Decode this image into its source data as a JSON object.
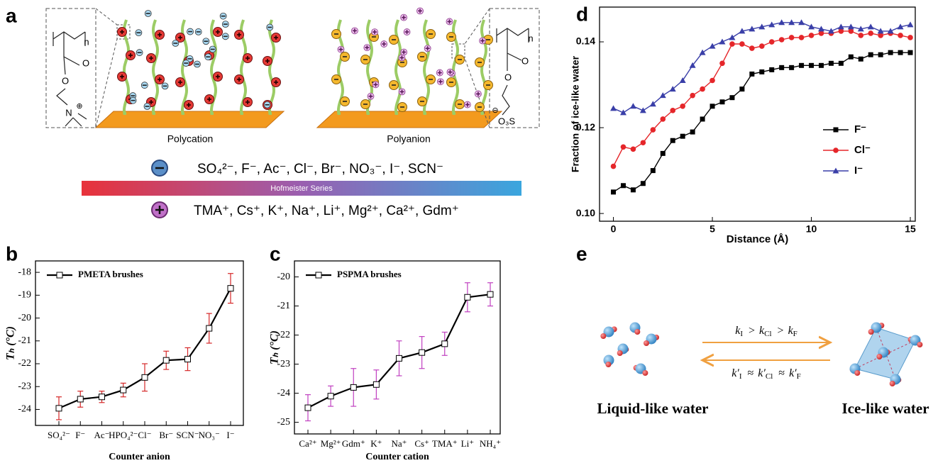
{
  "panel_labels": [
    "a",
    "b",
    "c",
    "d",
    "e"
  ],
  "schematic": {
    "polycation_label": "Polycation",
    "polyanion_label": "Polyanion",
    "cation_monomer": [
      "n",
      "O",
      "O",
      "N",
      "⊕"
    ],
    "anion_monomer": [
      "n",
      "O",
      "O",
      "⊖",
      "O₃S"
    ],
    "anion_series": "SO₄²⁻, F⁻, Ac⁻, Cl⁻, Br⁻, NO₃⁻, I⁻, SCN⁻",
    "scale_label": "Hofmeister Series",
    "cation_series": "TMA⁺, Cs⁺, K⁺, Na⁺, Li⁺, Mg²⁺, Ca²⁺, Gdm⁺"
  },
  "chart_data": [
    {
      "type": "line",
      "xlabel": "Counter anion",
      "ylabel": "Tₕ (°C)",
      "categories": [
        "SO₄²⁻",
        "F⁻",
        "Ac⁻",
        "HPO₄²⁻",
        "Cl⁻",
        "Br⁻",
        "SCN⁻",
        "NO₃⁻",
        "I⁻"
      ],
      "series": [
        {
          "name": "PMETA brushes",
          "color": "#000000",
          "marker": "open-square",
          "error_color": "#d62728",
          "values": [
            -23.95,
            -23.55,
            -23.45,
            -23.15,
            -22.6,
            -21.85,
            -21.8,
            -20.45,
            -18.7
          ],
          "errors": [
            0.5,
            0.35,
            0.25,
            0.3,
            0.6,
            0.4,
            0.5,
            0.65,
            0.65
          ]
        }
      ],
      "ylim": [
        -24.7,
        -17.5
      ],
      "yticks": [
        -24,
        -23,
        -22,
        -21,
        -20,
        -19,
        -18
      ],
      "legend": "upper left"
    },
    {
      "type": "line",
      "xlabel": "Counter cation",
      "ylabel": "Tₕ (°C)",
      "categories": [
        "Ca²⁺",
        "Mg²⁺",
        "Gdm⁺",
        "K⁺",
        "Na⁺",
        "Cs⁺",
        "TMA⁺",
        "Li⁺",
        "NH₄⁺"
      ],
      "series": [
        {
          "name": "PSPMA brushes",
          "color": "#000000",
          "marker": "open-square",
          "error_color": "#c040c0",
          "values": [
            -24.5,
            -24.1,
            -23.8,
            -23.7,
            -22.8,
            -22.6,
            -22.3,
            -20.7,
            -20.6
          ],
          "errors": [
            0.45,
            0.35,
            0.65,
            0.5,
            0.6,
            0.55,
            0.4,
            0.5,
            0.4
          ]
        }
      ],
      "ylim": [
        -25.4,
        -19.45
      ],
      "yticks": [
        -25,
        -24,
        -23,
        -22,
        -21,
        -20
      ],
      "legend": "upper left"
    },
    {
      "type": "line",
      "xlabel": "Distance (Å)",
      "ylabel": "Fraction of ice-like water",
      "x": [
        0,
        0.5,
        1,
        1.5,
        2,
        2.5,
        3,
        3.5,
        4,
        4.5,
        5,
        5.5,
        6,
        6.5,
        7,
        7.5,
        8,
        8.5,
        9,
        9.5,
        10,
        10.5,
        11,
        11.5,
        12,
        12.5,
        13,
        13.5,
        14,
        14.5,
        15
      ],
      "series": [
        {
          "name": "F⁻",
          "color": "#000000",
          "marker": "square",
          "values": [
            0.105,
            0.1065,
            0.1055,
            0.107,
            0.11,
            0.114,
            0.117,
            0.118,
            0.119,
            0.122,
            0.125,
            0.126,
            0.127,
            0.129,
            0.1325,
            0.133,
            0.1335,
            0.134,
            0.134,
            0.1345,
            0.1345,
            0.1345,
            0.135,
            0.135,
            0.1365,
            0.136,
            0.137,
            0.137,
            0.1375,
            0.1375,
            0.1375
          ]
        },
        {
          "name": "Cl⁻",
          "color": "#e5262a",
          "marker": "circle",
          "values": [
            0.111,
            0.1155,
            0.115,
            0.1165,
            0.1195,
            0.122,
            0.124,
            0.125,
            0.1275,
            0.129,
            0.131,
            0.135,
            0.1395,
            0.1395,
            0.1385,
            0.139,
            0.14,
            0.1405,
            0.141,
            0.141,
            0.1415,
            0.142,
            0.142,
            0.1425,
            0.1425,
            0.1415,
            0.142,
            0.1415,
            0.142,
            0.1415,
            0.141
          ]
        },
        {
          "name": "I⁻",
          "color": "#3a3fa8",
          "marker": "triangle",
          "values": [
            0.1245,
            0.1235,
            0.125,
            0.124,
            0.1255,
            0.1275,
            0.129,
            0.131,
            0.1345,
            0.1375,
            0.139,
            0.14,
            0.141,
            0.1425,
            0.143,
            0.1435,
            0.144,
            0.1445,
            0.1445,
            0.1445,
            0.1435,
            0.143,
            0.1425,
            0.1435,
            0.1435,
            0.143,
            0.1435,
            0.1425,
            0.1425,
            0.1435,
            0.144
          ]
        }
      ],
      "xlim": [
        -0.7,
        15.25
      ],
      "xticks": [
        0,
        5,
        10,
        15
      ],
      "ylim": [
        0.0982,
        0.1481
      ],
      "yticks": [
        {
          "value": 0.1,
          "label": "0.10"
        },
        {
          "value": 0.12,
          "label": "0.12"
        },
        {
          "value": 0.14,
          "label": "0.14"
        }
      ],
      "legend": "center right"
    }
  ],
  "kinetics": {
    "forward": [
      "k",
      "I",
      ">",
      "k",
      "Cl",
      ">",
      "k",
      "F"
    ],
    "reverse": [
      "k′",
      "I",
      "≈",
      "k′",
      "Cl",
      "≈",
      "k′",
      "F"
    ],
    "left_label": "Liquid-like water",
    "right_label": "Ice-like water"
  }
}
